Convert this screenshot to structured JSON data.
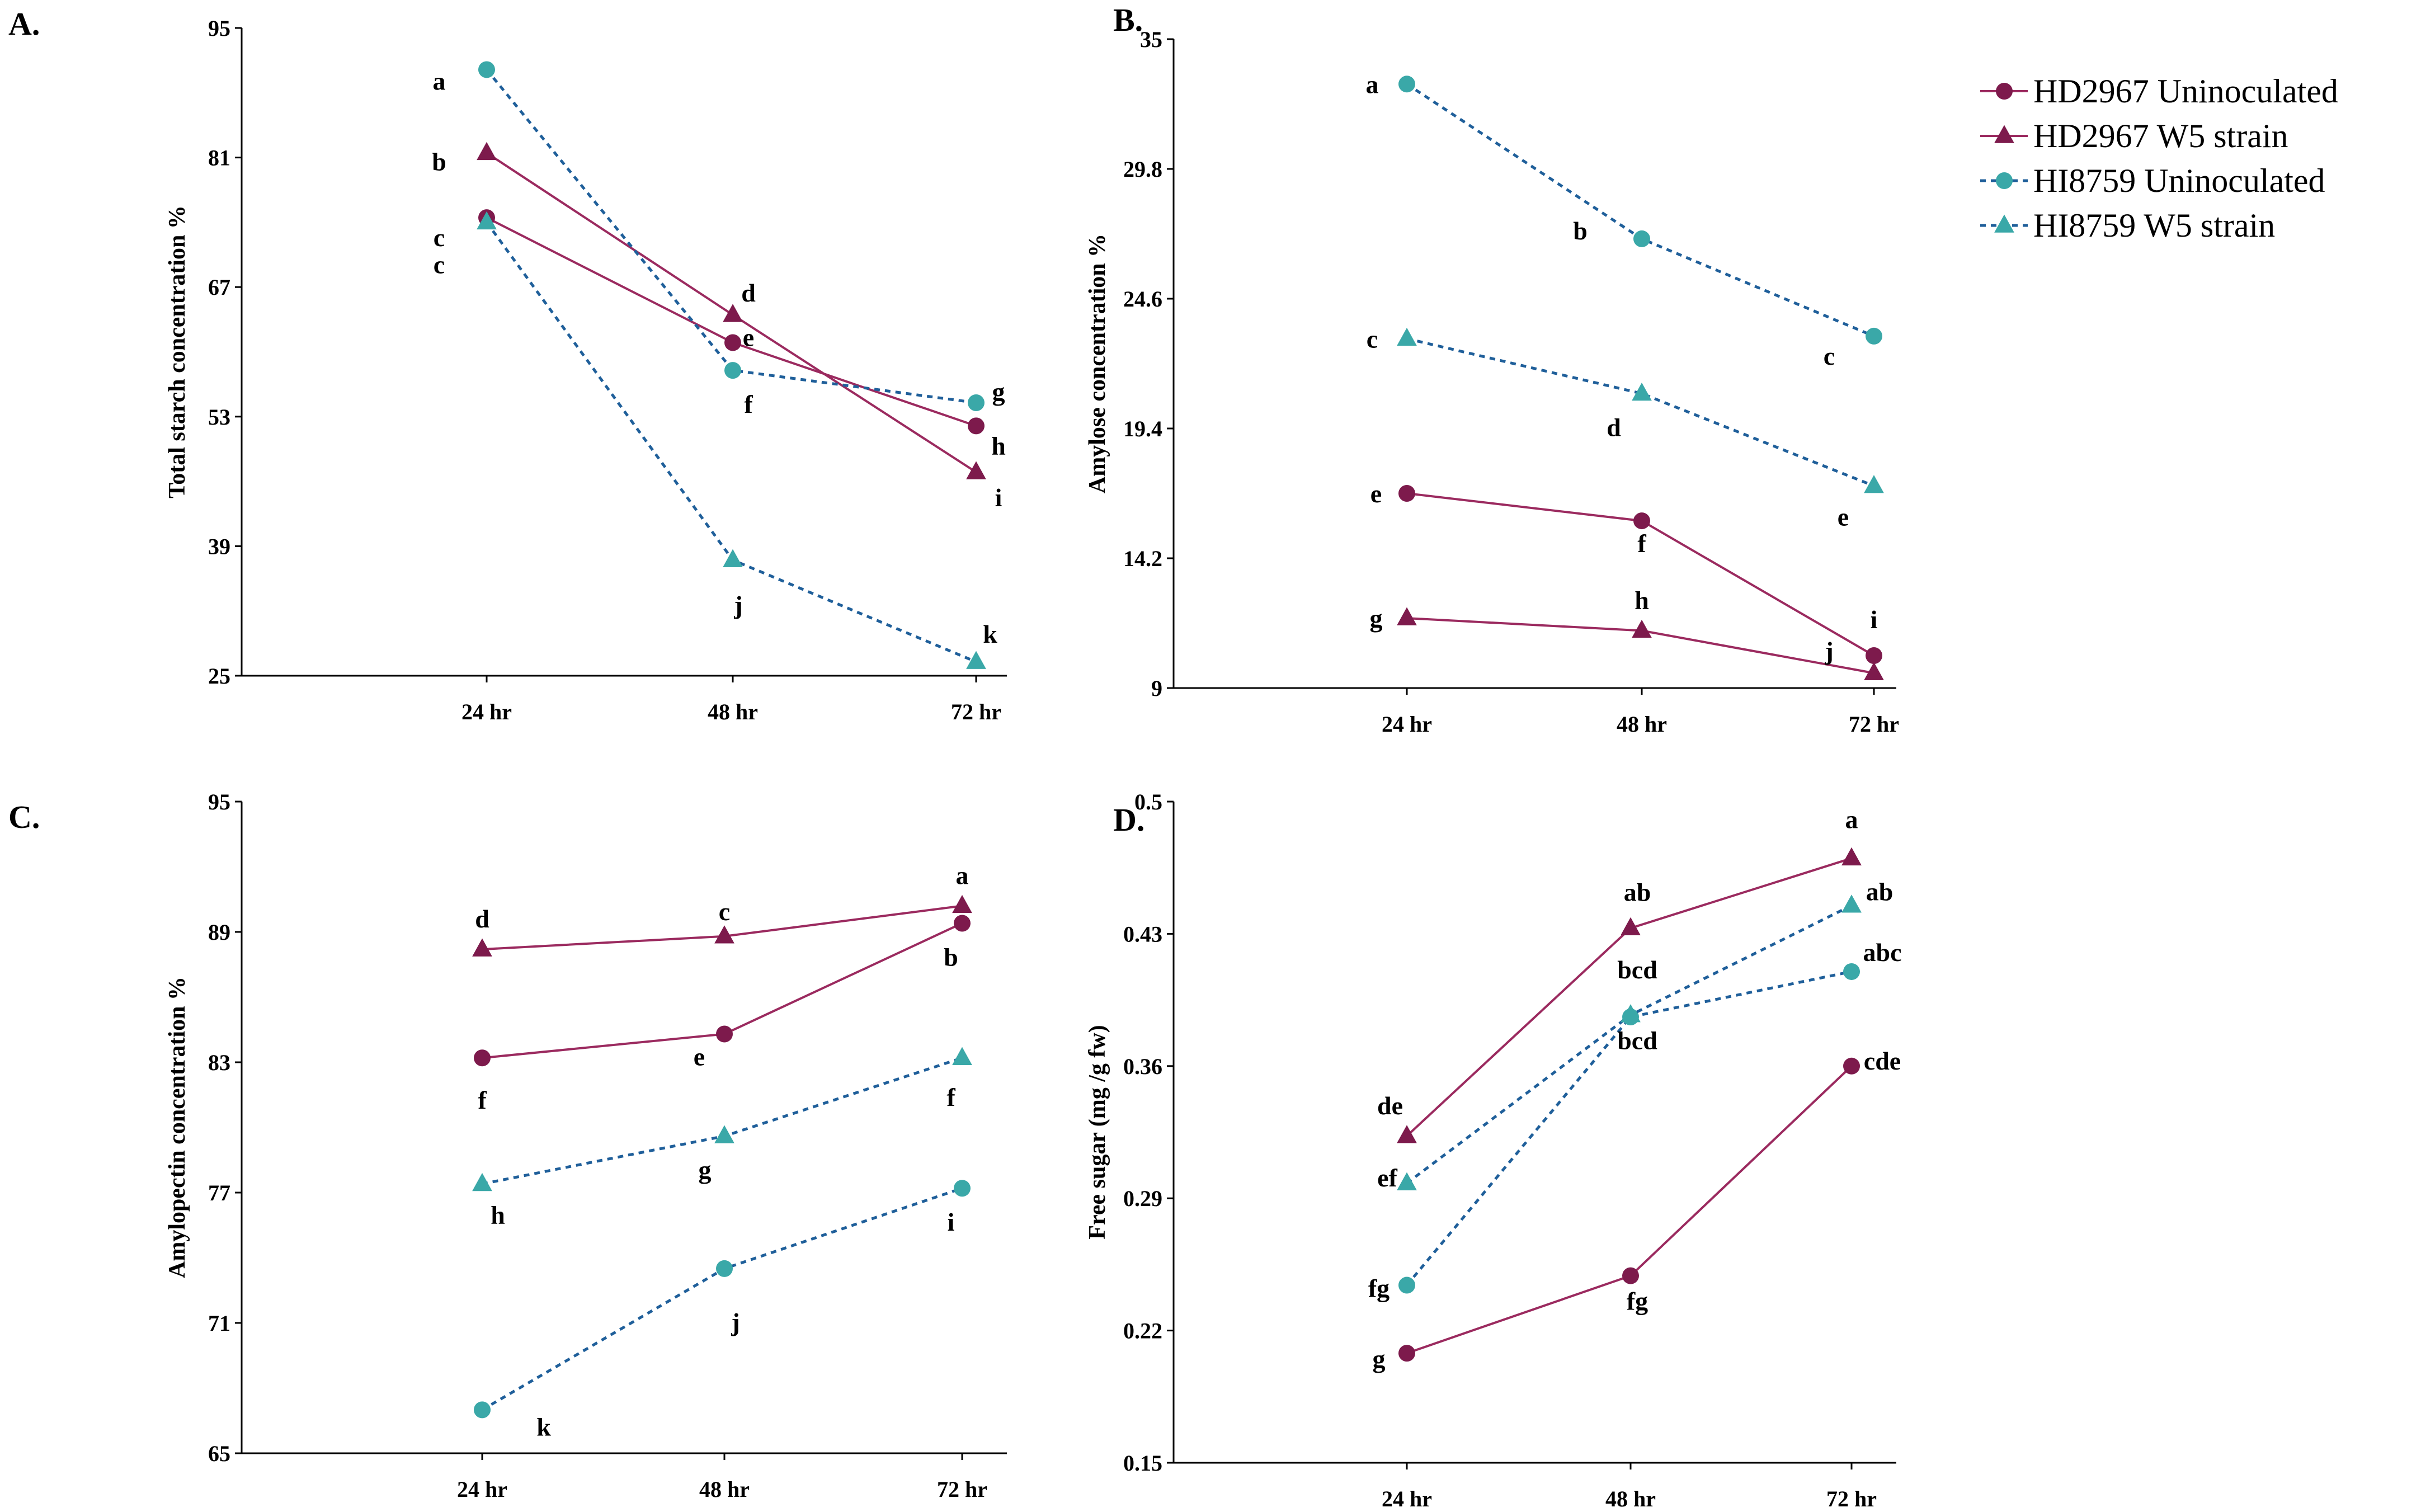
{
  "colors": {
    "hd2967": "#9b2a5f",
    "hd2967_marker": "#7d1a4c",
    "hi8759": "#1f5f9a",
    "hi8759_marker": "#3aa8a8"
  },
  "legend": [
    {
      "key": "hd_unin",
      "label": "HD2967 Uninoculated"
    },
    {
      "key": "hd_w5",
      "label": "HD2967 W5 strain"
    },
    {
      "key": "hi_unin",
      "label": "HI8759 Uninoculated"
    },
    {
      "key": "hi_w5",
      "label": "HI8759 W5 strain"
    }
  ],
  "chart_data": [
    {
      "type": "line",
      "panel": "A.",
      "ylabel": "Total starch concentration  %",
      "categories": [
        "24 hr",
        "48 hr",
        "72 hr"
      ],
      "ylim": [
        25,
        95
      ],
      "yticks": [
        "25",
        "39",
        "53",
        "67",
        "81",
        "95"
      ],
      "series": [
        {
          "key": "hd_unin",
          "name": "HD2967 Uninoculated",
          "values": [
            74.5,
            61,
            52
          ],
          "letters": [
            "c",
            "e",
            "h"
          ]
        },
        {
          "key": "hd_w5",
          "name": "HD2967 W5 strain",
          "values": [
            81.5,
            64,
            47
          ],
          "letters": [
            "b",
            "d",
            "i"
          ]
        },
        {
          "key": "hi_unin",
          "name": "HI8759 Uninoculated",
          "values": [
            90.5,
            58,
            54.5
          ],
          "letters": [
            "a",
            "f",
            "g"
          ]
        },
        {
          "key": "hi_w5",
          "name": "HI8759 W5 strain",
          "values": [
            74,
            37.5,
            26.5
          ],
          "letters": [
            "c",
            "j",
            "k"
          ]
        }
      ]
    },
    {
      "type": "line",
      "panel": "B.",
      "ylabel": "Amylose concentration %",
      "categories": [
        "24 hr",
        "48 hr",
        "72 hr"
      ],
      "ylim": [
        9,
        35
      ],
      "yticks": [
        "9",
        "14.2",
        "19.4",
        "24.6",
        "29.8",
        "35"
      ],
      "series": [
        {
          "key": "hd_unin",
          "name": "HD2967 Uninoculated",
          "values": [
            16.8,
            15.7,
            10.3
          ],
          "letters": [
            "e",
            "f",
            "i"
          ]
        },
        {
          "key": "hd_w5",
          "name": "HD2967 W5 strain",
          "values": [
            11.8,
            11.3,
            9.6
          ],
          "letters": [
            "g",
            "h",
            "j"
          ]
        },
        {
          "key": "hi_unin",
          "name": "HI8759 Uninoculated",
          "values": [
            33.2,
            27,
            23.1
          ],
          "letters": [
            "a",
            "b",
            "c"
          ]
        },
        {
          "key": "hi_w5",
          "name": "HI8759 W5 strain",
          "values": [
            23,
            20.8,
            17.1
          ],
          "letters": [
            "c",
            "d",
            "e"
          ]
        }
      ]
    },
    {
      "type": "line",
      "panel": "C.",
      "ylabel": "Amylopectin concentration  %",
      "categories": [
        "24 hr",
        "48 hr",
        "72 hr"
      ],
      "ylim": [
        65,
        95
      ],
      "yticks": [
        "65",
        "71",
        "77",
        "83",
        "89",
        "95"
      ],
      "series": [
        {
          "key": "hd_unin",
          "name": "HD2967 Uninoculated",
          "values": [
            83.2,
            84.3,
            89.4
          ],
          "letters": [
            "f",
            "e",
            "b"
          ]
        },
        {
          "key": "hd_w5",
          "name": "HD2967 W5 strain",
          "values": [
            88.2,
            88.8,
            90.2
          ],
          "letters": [
            "d",
            "c",
            "a"
          ]
        },
        {
          "key": "hi_unin",
          "name": "HI8759 Uninoculated",
          "values": [
            67,
            73.5,
            77.2
          ],
          "letters": [
            "k",
            "j",
            "i"
          ]
        },
        {
          "key": "hi_w5",
          "name": "HI8759 W5 strain",
          "values": [
            77.4,
            79.6,
            83.2
          ],
          "letters": [
            "h",
            "g",
            "f"
          ]
        }
      ]
    },
    {
      "type": "line",
      "panel": "D.",
      "ylabel": "Free sugar (mg /g fw)",
      "categories": [
        "24 hr",
        "48 hr",
        "72 hr"
      ],
      "ylim": [
        0.15,
        0.5
      ],
      "yticks": [
        "0.15",
        "0.22",
        "0.29",
        "0.36",
        "0.43",
        "0.5"
      ],
      "series": [
        {
          "key": "hd_unin",
          "name": "HD2967 Uninoculated",
          "values": [
            0.208,
            0.249,
            0.36
          ],
          "letters": [
            "g",
            "fg",
            "cde"
          ]
        },
        {
          "key": "hd_w5",
          "name": "HD2967 W5 strain",
          "values": [
            0.323,
            0.433,
            0.47
          ],
          "letters": [
            "de",
            "ab",
            "a"
          ]
        },
        {
          "key": "hi_unin",
          "name": "HI8759 Uninoculated",
          "values": [
            0.244,
            0.386,
            0.41
          ],
          "letters": [
            "fg",
            "bcd",
            "abc"
          ]
        },
        {
          "key": "hi_w5",
          "name": "HI8759 W5 strain",
          "values": [
            0.298,
            0.387,
            0.445
          ],
          "letters": [
            "ef",
            "bcd",
            "ab"
          ]
        }
      ]
    }
  ]
}
